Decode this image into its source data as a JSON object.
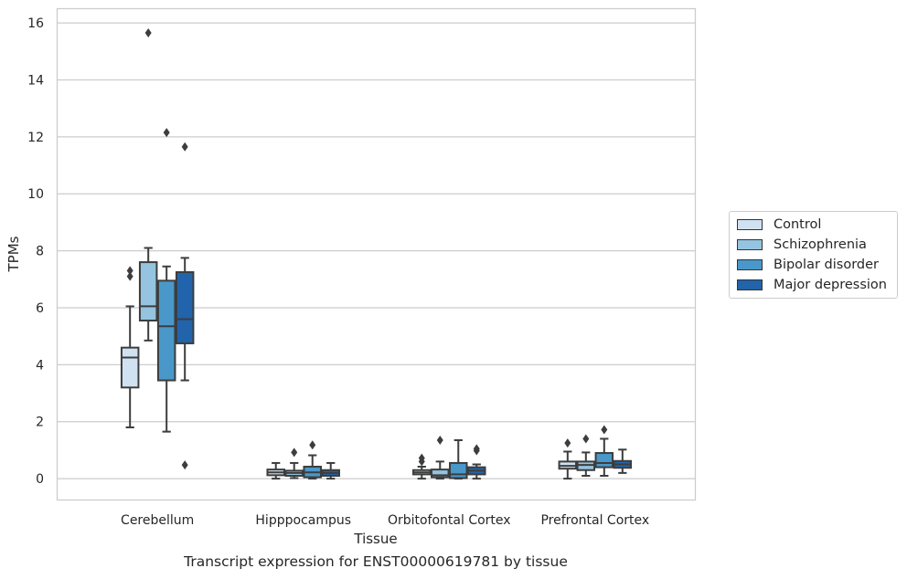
{
  "chart_data": {
    "type": "box",
    "title": "Transcript expression for ENST00000619781 by tissue",
    "xlabel": "Tissue",
    "ylabel": "TPMs",
    "ylim": [
      -0.75,
      16.5
    ],
    "yticks": [
      0,
      2,
      4,
      6,
      8,
      10,
      12,
      14,
      16
    ],
    "grid": true,
    "legend_placement": "right",
    "categories": [
      "Cerebellum",
      "Hipppocampus",
      "Orbitofontal Cortex",
      "Prefrontal Cortex"
    ],
    "series": [
      {
        "name": "Control",
        "color": "#d0e1f2",
        "boxes": [
          {
            "whislo": 1.8,
            "q1": 3.2,
            "med": 4.25,
            "q3": 4.6,
            "whishi": 6.05,
            "fliers": [
              7.1,
              7.3
            ]
          },
          {
            "whislo": 0.0,
            "q1": 0.12,
            "med": 0.22,
            "q3": 0.32,
            "whishi": 0.55,
            "fliers": []
          },
          {
            "whislo": 0.0,
            "q1": 0.15,
            "med": 0.22,
            "q3": 0.3,
            "whishi": 0.42,
            "fliers": [
              0.6,
              0.72
            ]
          },
          {
            "whislo": 0.0,
            "q1": 0.35,
            "med": 0.45,
            "q3": 0.6,
            "whishi": 0.95,
            "fliers": [
              1.25
            ]
          }
        ]
      },
      {
        "name": "Schizophrenia",
        "color": "#94c4df",
        "boxes": [
          {
            "whislo": 4.85,
            "q1": 5.55,
            "med": 6.05,
            "q3": 7.6,
            "whishi": 8.1,
            "fliers": [
              15.65
            ]
          },
          {
            "whislo": 0.02,
            "q1": 0.1,
            "med": 0.2,
            "q3": 0.28,
            "whishi": 0.55,
            "fliers": [
              0.92
            ]
          },
          {
            "whislo": 0.0,
            "q1": 0.05,
            "med": 0.12,
            "q3": 0.32,
            "whishi": 0.6,
            "fliers": [
              1.35
            ]
          },
          {
            "whislo": 0.1,
            "q1": 0.3,
            "med": 0.48,
            "q3": 0.6,
            "whishi": 0.92,
            "fliers": [
              1.4
            ]
          }
        ]
      },
      {
        "name": "Bipolar disorder",
        "color": "#4a98c9",
        "boxes": [
          {
            "whislo": 1.65,
            "q1": 3.45,
            "med": 5.35,
            "q3": 6.95,
            "whishi": 7.45,
            "fliers": [
              12.15
            ]
          },
          {
            "whislo": 0.0,
            "q1": 0.05,
            "med": 0.22,
            "q3": 0.42,
            "whishi": 0.82,
            "fliers": [
              1.18
            ]
          },
          {
            "whislo": 0.0,
            "q1": 0.02,
            "med": 0.15,
            "q3": 0.55,
            "whishi": 1.35,
            "fliers": []
          },
          {
            "whislo": 0.1,
            "q1": 0.4,
            "med": 0.55,
            "q3": 0.9,
            "whishi": 1.4,
            "fliers": [
              1.72
            ]
          }
        ]
      },
      {
        "name": "Major depression",
        "color": "#2164ab",
        "boxes": [
          {
            "whislo": 3.45,
            "q1": 4.75,
            "med": 5.6,
            "q3": 7.25,
            "whishi": 7.75,
            "fliers": [
              0.48,
              11.65
            ]
          },
          {
            "whislo": 0.0,
            "q1": 0.1,
            "med": 0.2,
            "q3": 0.3,
            "whishi": 0.55,
            "fliers": []
          },
          {
            "whislo": 0.0,
            "q1": 0.15,
            "med": 0.28,
            "q3": 0.4,
            "whishi": 0.5,
            "fliers": [
              0.98,
              1.05
            ]
          },
          {
            "whislo": 0.2,
            "q1": 0.38,
            "med": 0.5,
            "q3": 0.62,
            "whishi": 1.02,
            "fliers": []
          }
        ]
      }
    ]
  }
}
